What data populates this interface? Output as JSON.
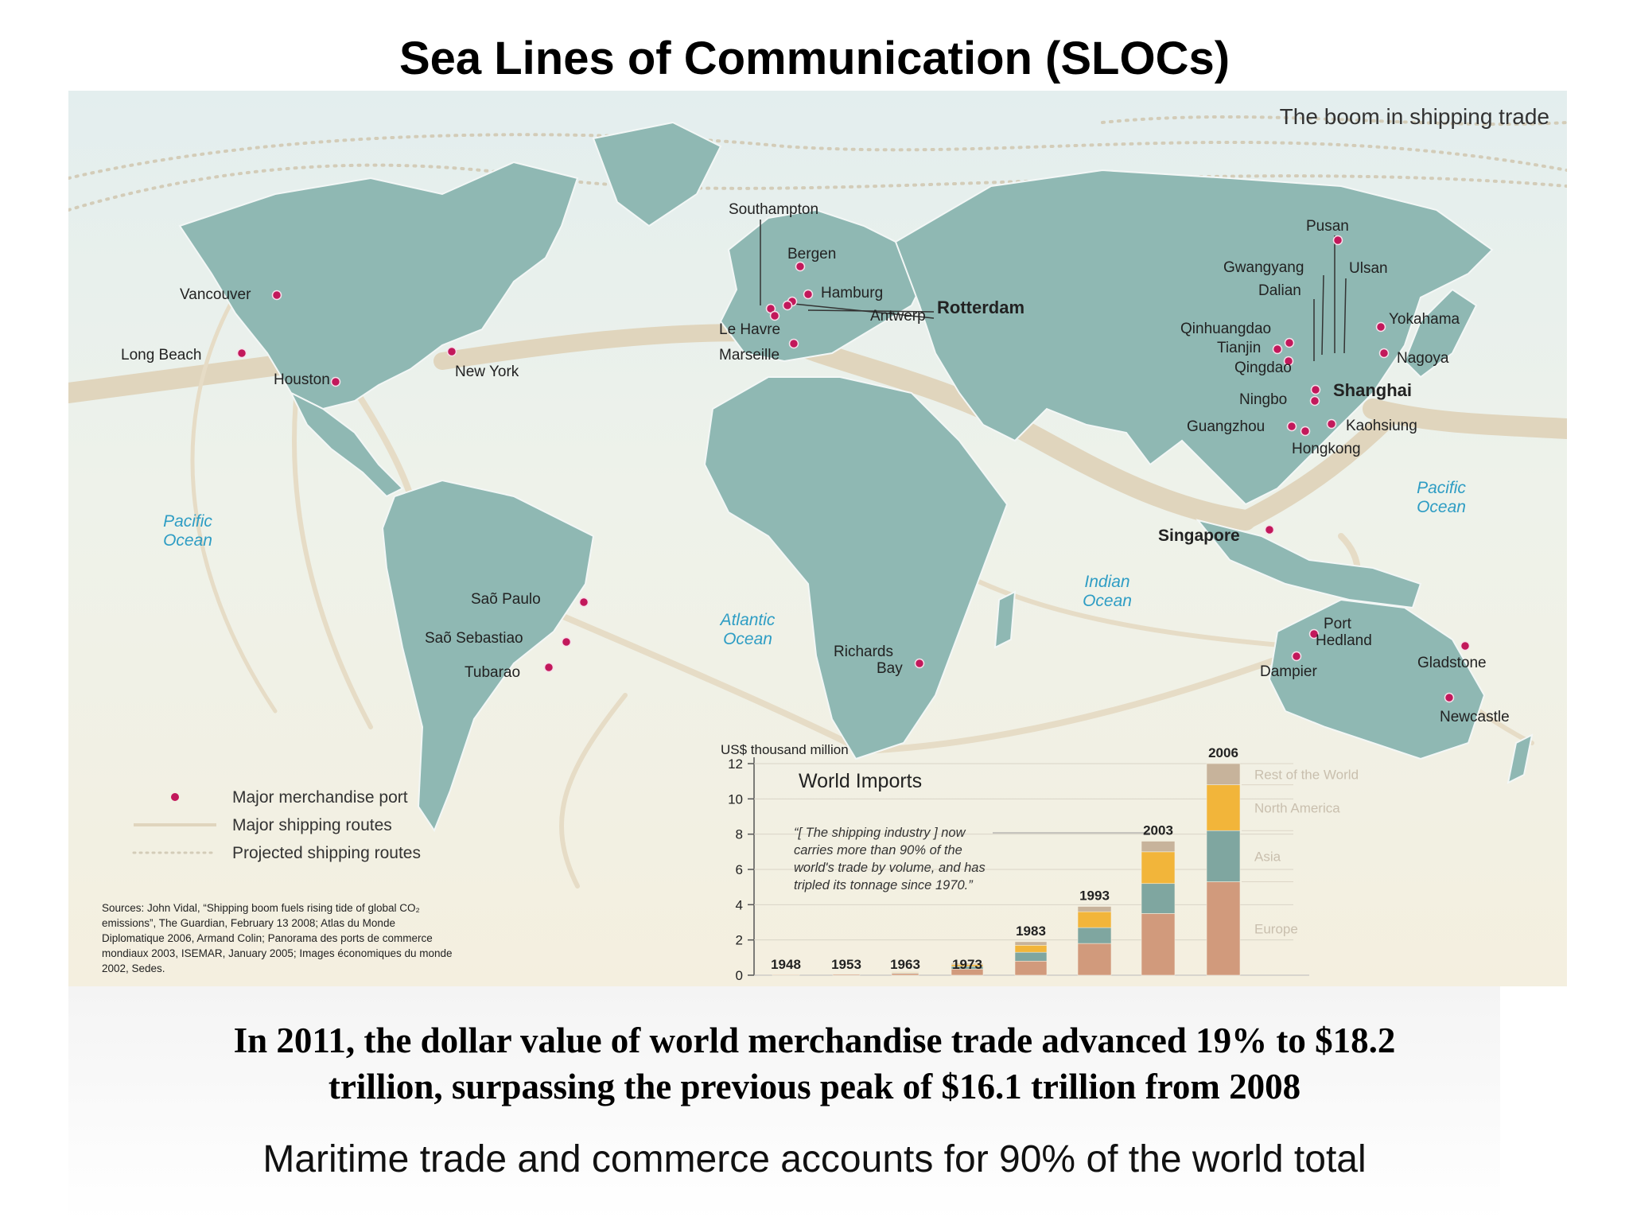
{
  "title": "Sea Lines of Communication (SLOCs)",
  "map_heading": "The boom in shipping trade",
  "colors": {
    "land": "#8fb8b3",
    "land_border": "#f3f7f6",
    "route": "#e4d9c2",
    "port": "#c2185b",
    "europe": "#d19a7c",
    "asia": "#7fa6a0",
    "north_america": "#f2b53a",
    "rest_of_world": "#c7b39b"
  },
  "ocean_labels": {
    "pacific_west": [
      "Pacific",
      "Ocean"
    ],
    "pacific_east": [
      "Pacific",
      "Ocean"
    ],
    "atlantic": [
      "Atlantic",
      "Ocean"
    ],
    "indian": [
      "Indian",
      "Ocean"
    ]
  },
  "ports": [
    {
      "name": "Vancouver"
    },
    {
      "name": "Long Beach"
    },
    {
      "name": "Houston"
    },
    {
      "name": "New York"
    },
    {
      "name": "Saõ Paulo"
    },
    {
      "name": "Saõ Sebastiao"
    },
    {
      "name": "Tubarao"
    },
    {
      "name": "Southampton"
    },
    {
      "name": "Bergen"
    },
    {
      "name": "Hamburg"
    },
    {
      "name": "Rotterdam"
    },
    {
      "name": "Antwerp"
    },
    {
      "name": "Le Havre"
    },
    {
      "name": "Marseille"
    },
    {
      "name": "Richards"
    },
    {
      "name": "Bay"
    },
    {
      "name": "Pusan"
    },
    {
      "name": "Gwangyang"
    },
    {
      "name": "Ulsan"
    },
    {
      "name": "Dalian"
    },
    {
      "name": "Yokahama"
    },
    {
      "name": "Qinhuangdao"
    },
    {
      "name": "Tianjin"
    },
    {
      "name": "Nagoya"
    },
    {
      "name": "Qingdao"
    },
    {
      "name": "Shanghai"
    },
    {
      "name": "Ningbo"
    },
    {
      "name": "Guangzhou"
    },
    {
      "name": "Kaohsiung"
    },
    {
      "name": "Hongkong"
    },
    {
      "name": "Singapore"
    },
    {
      "name": "Port"
    },
    {
      "name": "Hedland"
    },
    {
      "name": "Dampier"
    },
    {
      "name": "Gladstone"
    },
    {
      "name": "Newcastle"
    }
  ],
  "legend": {
    "items": [
      {
        "label": "Major merchandise port",
        "symbol": "dot"
      },
      {
        "label": "Major shipping routes",
        "symbol": "line"
      },
      {
        "label": "Projected shipping routes",
        "symbol": "dotted"
      }
    ]
  },
  "sources": [
    "Sources: John Vidal, “Shipping boom fuels rising tide of global CO₂",
    "emissions”, The Guardian, February 13 2008; Atlas du Monde",
    "Diplomatique 2006, Armand Colin; Panorama des ports de commerce",
    "mondiaux 2003, ISEMAR, January 2005; Images économiques du monde",
    "2002, Sedes."
  ],
  "chart_data": {
    "type": "bar",
    "title": "World Imports",
    "ylabel": "US$ thousand million",
    "ylim": [
      0,
      12
    ],
    "yticks": [
      "0",
      "2",
      "4",
      "6",
      "8",
      "10",
      "12"
    ],
    "categories": [
      "1948",
      "1953",
      "1963",
      "1973",
      "1983",
      "1993",
      "2003",
      "2006"
    ],
    "stacked": true,
    "series": [
      {
        "name": "Europe",
        "values": [
          0.05,
          0.06,
          0.1,
          0.35,
          0.8,
          1.8,
          3.5,
          5.3
        ]
      },
      {
        "name": "Asia",
        "values": [
          0.01,
          0.02,
          0.04,
          0.15,
          0.5,
          0.9,
          1.7,
          2.9
        ]
      },
      {
        "name": "North America",
        "values": [
          0.01,
          0.02,
          0.04,
          0.1,
          0.4,
          0.9,
          1.8,
          2.6
        ]
      },
      {
        "name": "Rest of the World",
        "values": [
          0.01,
          0.02,
          0.03,
          0.07,
          0.2,
          0.3,
          0.6,
          1.2
        ]
      }
    ],
    "quote_lines": [
      "“[ The shipping industry ] now",
      "carries more than 90% of the",
      "world's trade by volume, and has",
      "tripled its tonnage since 1970.”"
    ]
  },
  "fact_lines": [
    "In 2011, the dollar value of world merchandise trade advanced 19% to $18.2",
    "trillion, surpassing the previous peak of $16.1 trillion from 2008"
  ],
  "footer": "Maritime trade and commerce accounts for 90% of the world total"
}
